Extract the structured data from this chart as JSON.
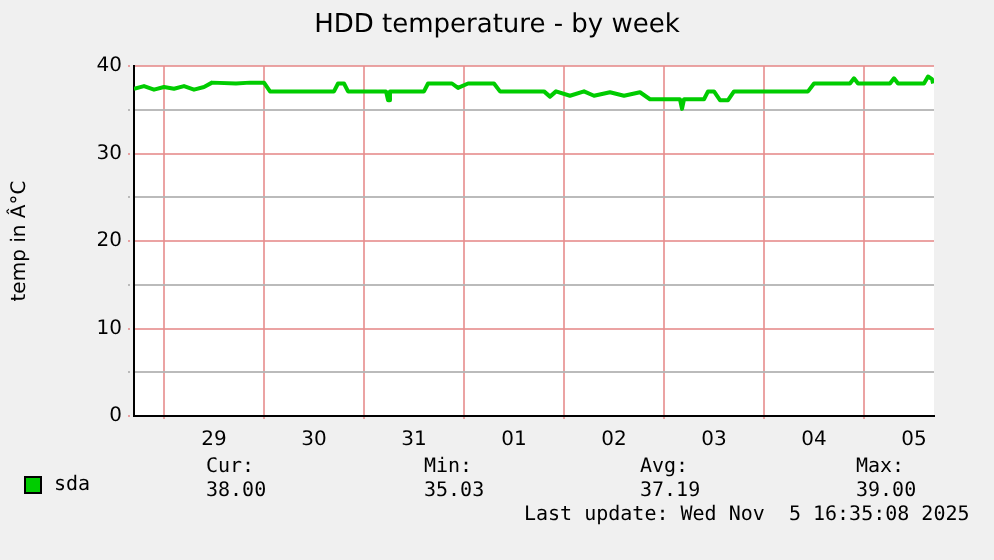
{
  "chart_data": {
    "type": "line",
    "title": "HDD temperature - by week",
    "ylabel": "temp in Â°C",
    "x": [
      "2025-10-28T16:48",
      "2025-10-28T19:12",
      "2025-10-28T21:36",
      "2025-10-29T00:00",
      "2025-10-29T02:24",
      "2025-10-29T04:48",
      "2025-10-29T07:12",
      "2025-10-29T09:36",
      "2025-10-29T11:31",
      "2025-10-29T17:17",
      "2025-10-29T20:38",
      "2025-10-30T00:00",
      "2025-10-30T01:26",
      "2025-10-30T16:48",
      "2025-10-30T17:46",
      "2025-10-30T19:12",
      "2025-10-30T20:10",
      "2025-10-31T05:17",
      "2025-10-31T05:46",
      "2025-10-31T06:14",
      "2025-10-31T14:24",
      "2025-10-31T15:22",
      "2025-10-31T21:07",
      "2025-10-31T22:34",
      "2025-11-01T00:58",
      "2025-11-01T07:12",
      "2025-11-01T08:38",
      "2025-11-01T19:12",
      "2025-11-01T20:38",
      "2025-11-01T22:05",
      "2025-11-02T01:26",
      "2025-11-02T04:48",
      "2025-11-02T07:12",
      "2025-11-02T11:02",
      "2025-11-02T14:24",
      "2025-11-02T18:14",
      "2025-11-02T20:38",
      "2025-11-03T03:50",
      "2025-11-03T04:19",
      "2025-11-03T04:48",
      "2025-11-03T09:36",
      "2025-11-03T10:34",
      "2025-11-03T12:00",
      "2025-11-03T13:26",
      "2025-11-03T15:22",
      "2025-11-03T16:48",
      "2025-11-04T10:34",
      "2025-11-04T12:00",
      "2025-11-04T20:38",
      "2025-11-04T21:36",
      "2025-11-04T22:34",
      "2025-11-05T06:14",
      "2025-11-05T07:12",
      "2025-11-05T08:10",
      "2025-11-05T14:24",
      "2025-11-05T15:22",
      "2025-11-05T16:19",
      "2025-11-05T16:35"
    ],
    "series": [
      {
        "name": "sda",
        "color": "#00cc00",
        "values": [
          37.4,
          37.7,
          37.3,
          37.6,
          37.4,
          37.7,
          37.3,
          37.6,
          38.1,
          38.0,
          38.1,
          38.1,
          37.1,
          37.1,
          38.0,
          38.0,
          37.1,
          37.1,
          36.1,
          37.1,
          37.1,
          38.0,
          38.0,
          37.5,
          38.0,
          38.0,
          37.1,
          37.1,
          36.5,
          37.1,
          36.6,
          37.1,
          36.6,
          37.0,
          36.6,
          37.0,
          36.2,
          36.2,
          35.1,
          36.2,
          36.2,
          37.1,
          37.1,
          36.1,
          36.1,
          37.1,
          37.1,
          38.0,
          38.0,
          38.6,
          38.0,
          38.0,
          38.6,
          38.0,
          38.0,
          38.8,
          38.5,
          38.0
        ]
      }
    ],
    "xlim": [
      "2025-10-28T16:48",
      "2025-11-05T16:48"
    ],
    "xticks": [
      {
        "value": "2025-10-29T00:00",
        "label": null
      },
      {
        "value": "2025-10-29T12:00",
        "label": "29"
      },
      {
        "value": "2025-10-30T00:00",
        "label": null
      },
      {
        "value": "2025-10-30T12:00",
        "label": "30"
      },
      {
        "value": "2025-10-31T00:00",
        "label": null
      },
      {
        "value": "2025-10-31T12:00",
        "label": "31"
      },
      {
        "value": "2025-11-01T00:00",
        "label": null
      },
      {
        "value": "2025-11-01T12:00",
        "label": "01"
      },
      {
        "value": "2025-11-02T00:00",
        "label": null
      },
      {
        "value": "2025-11-02T12:00",
        "label": "02"
      },
      {
        "value": "2025-11-03T00:00",
        "label": null
      },
      {
        "value": "2025-11-03T12:00",
        "label": "03"
      },
      {
        "value": "2025-11-04T00:00",
        "label": null
      },
      {
        "value": "2025-11-04T12:00",
        "label": "04"
      },
      {
        "value": "2025-11-05T00:00",
        "label": null
      },
      {
        "value": "2025-11-05T12:00",
        "label": "05"
      }
    ],
    "ylim": [
      0,
      40
    ],
    "yticks": [
      0,
      {
        "value": 5,
        "label": null
      },
      10,
      {
        "value": 15,
        "label": null
      },
      20,
      {
        "value": 25,
        "label": null
      },
      30,
      {
        "value": 35,
        "label": null
      },
      40
    ],
    "grid": true,
    "legend": "bottom left",
    "marker": "none",
    "line_style": "solid",
    "annotations": [
      "Cur:",
      "38.00",
      "Min:",
      "35.03",
      "Avg:",
      "37.19",
      "Max:",
      "39.00",
      "Last update: Wed Nov  5 16:35:08 2025"
    ]
  }
}
